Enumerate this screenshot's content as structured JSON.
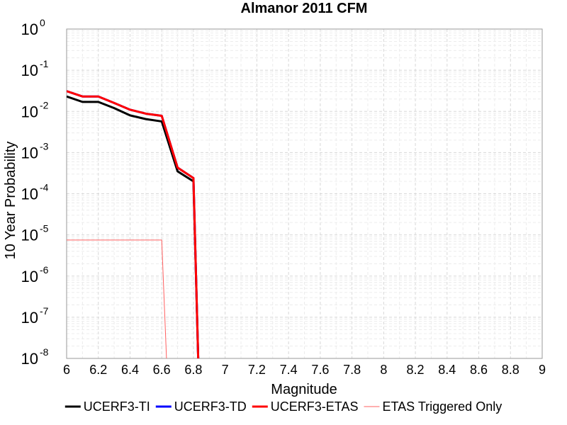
{
  "chart_data": {
    "type": "line",
    "title": "Almanor 2011 CFM",
    "xlabel": "Magnitude",
    "ylabel": "10 Year Probability",
    "xlim": [
      6,
      9
    ],
    "ylim": [
      1e-08,
      1
    ],
    "yscale": "log",
    "grid": true,
    "legend_position": "bottom",
    "xticks": [
      "6",
      "6.2",
      "6.4",
      "6.6",
      "6.8",
      "7",
      "7.2",
      "7.4",
      "7.6",
      "7.8",
      "8",
      "8.2",
      "8.4",
      "8.6",
      "8.8",
      "9"
    ],
    "yticks": [
      {
        "base": "10",
        "exp": "-8",
        "value": 1e-08
      },
      {
        "base": "10",
        "exp": "-7",
        "value": 1e-07
      },
      {
        "base": "10",
        "exp": "-6",
        "value": 1e-06
      },
      {
        "base": "10",
        "exp": "-5",
        "value": 1e-05
      },
      {
        "base": "10",
        "exp": "-4",
        "value": 0.0001
      },
      {
        "base": "10",
        "exp": "-3",
        "value": 0.001
      },
      {
        "base": "10",
        "exp": "-2",
        "value": 0.01
      },
      {
        "base": "10",
        "exp": "-1",
        "value": 0.1
      },
      {
        "base": "10",
        "exp": "0",
        "value": 1
      }
    ],
    "series": [
      {
        "name": "UCERF3-TI",
        "color": "#000000",
        "width": 3,
        "points": [
          [
            6.0,
            0.023
          ],
          [
            6.1,
            0.017
          ],
          [
            6.2,
            0.017
          ],
          [
            6.3,
            0.012
          ],
          [
            6.4,
            0.008
          ],
          [
            6.5,
            0.0065
          ],
          [
            6.6,
            0.0057
          ],
          [
            6.7,
            0.00035
          ],
          [
            6.8,
            0.0002
          ],
          [
            6.83,
            1e-08
          ]
        ]
      },
      {
        "name": "UCERF3-TD",
        "color": "#0000ff",
        "width": 3,
        "points": [
          [
            6.0,
            0.031
          ],
          [
            6.1,
            0.023
          ],
          [
            6.2,
            0.023
          ],
          [
            6.3,
            0.016
          ],
          [
            6.4,
            0.011
          ],
          [
            6.5,
            0.0088
          ],
          [
            6.6,
            0.0078
          ],
          [
            6.7,
            0.00043
          ],
          [
            6.8,
            0.00024
          ],
          [
            6.83,
            1e-08
          ]
        ]
      },
      {
        "name": "UCERF3-ETAS",
        "color": "#ff0000",
        "width": 3,
        "points": [
          [
            6.0,
            0.031
          ],
          [
            6.1,
            0.023
          ],
          [
            6.2,
            0.023
          ],
          [
            6.3,
            0.016
          ],
          [
            6.4,
            0.011
          ],
          [
            6.5,
            0.0088
          ],
          [
            6.6,
            0.0078
          ],
          [
            6.7,
            0.00043
          ],
          [
            6.8,
            0.00024
          ],
          [
            6.83,
            1e-08
          ]
        ]
      },
      {
        "name": "ETAS Triggered Only",
        "color": "#ff6060",
        "width": 1,
        "points": [
          [
            6.0,
            7.5e-06
          ],
          [
            6.6,
            7.5e-06
          ],
          [
            6.63,
            1e-08
          ]
        ]
      }
    ]
  }
}
